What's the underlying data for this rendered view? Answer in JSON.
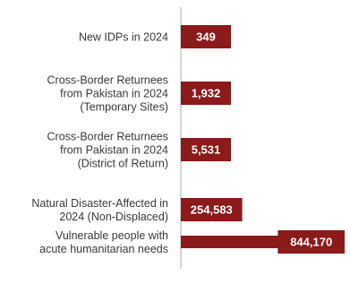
{
  "colors": {
    "bar": "#8b1a1a",
    "axis": "#c8c8c8",
    "label_text": "#3a3a3a",
    "value_text": "#ffffff"
  },
  "chart_data": {
    "type": "bar",
    "orientation": "horizontal",
    "title": "",
    "xlabel": "",
    "ylabel": "",
    "grid": false,
    "legend": "none",
    "categories": [
      [
        "New IDPs in 2024"
      ],
      [
        "Cross-Border Returnees",
        "from Pakistan in 2024",
        "(Temporary Sites)"
      ],
      [
        "Cross-Border Returnees",
        "from Pakistan in 2024",
        "(District of Return)"
      ],
      [
        "Natural Disaster-Affected in",
        "2024 (Non-Displaced)"
      ],
      [
        "Vulnerable people with",
        "acute humanitarian needs"
      ]
    ],
    "values": [
      349,
      1932,
      5531,
      254583,
      844170
    ],
    "value_labels": [
      "349",
      "1,932",
      "5,531",
      "254,583",
      "844,170"
    ],
    "xlim": [
      0,
      844170
    ]
  }
}
